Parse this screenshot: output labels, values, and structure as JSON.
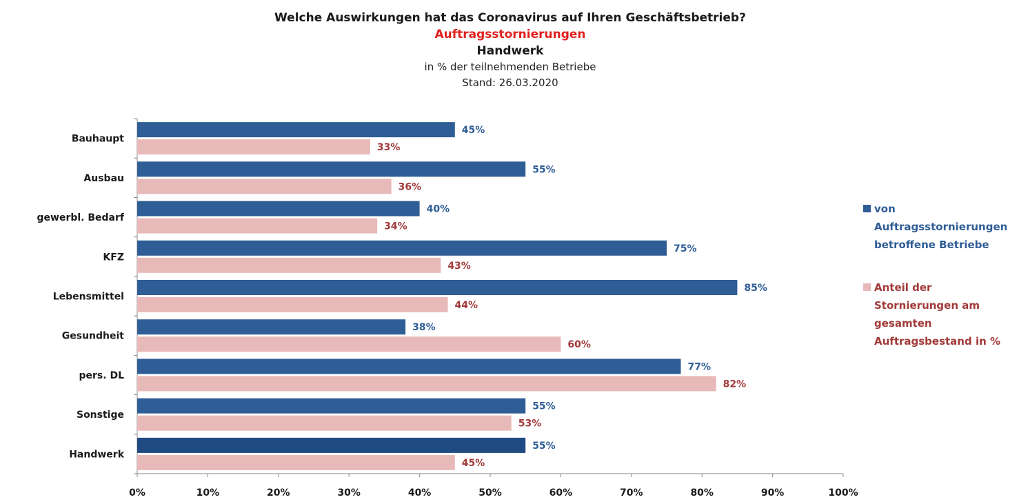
{
  "title": "Welche Auswirkungen hat das Coronavirus auf Ihren Geschäftsbetrieb?",
  "subtitle": "Auftragsstornierungen",
  "subtitle2": "Handwerk",
  "note": "in % der teilnehmenden Betriebe",
  "date": "Stand:  26.03.2020",
  "colors": {
    "series1": "#2f5d96",
    "series1_total": "#1f4a82",
    "series2": "#e8b9b9",
    "label1": "#2f5d96",
    "label2": "#a23a3a",
    "axis": "#888888"
  },
  "legend": {
    "series1_lines": [
      "von",
      "Auftragsstornierungen",
      "betroffene Betriebe"
    ],
    "series2_lines": [
      "Anteil der",
      "Stornierungen am",
      "gesamten",
      "Auftragsbestand in %"
    ]
  },
  "chart_data": {
    "type": "bar",
    "orientation": "horizontal",
    "categories": [
      "Bauhaupt",
      "Ausbau",
      "gewerbl. Bedarf",
      "KFZ",
      "Lebensmittel",
      "Gesundheit",
      "pers. DL",
      "Sonstige",
      "Handwerk"
    ],
    "series": [
      {
        "name": "von Auftragsstornierungen betroffene Betriebe",
        "values": [
          45,
          55,
          40,
          75,
          85,
          38,
          77,
          55,
          55
        ]
      },
      {
        "name": "Anteil der Stornierungen am gesamten Auftragsbestand in %",
        "values": [
          33,
          36,
          34,
          43,
          44,
          60,
          82,
          53,
          45
        ]
      }
    ],
    "data_labels": [
      [
        "45%",
        "55%",
        "40%",
        "75%",
        "85%",
        "38%",
        "77%",
        "55%",
        "55%"
      ],
      [
        "33%",
        "36%",
        "34%",
        "43%",
        "44%",
        "60%",
        "82%",
        "53%",
        "45%"
      ]
    ],
    "x_ticks": [
      "0%",
      "10%",
      "20%",
      "30%",
      "40%",
      "50%",
      "60%",
      "70%",
      "80%",
      "90%",
      "100%"
    ],
    "xlim": [
      0,
      100
    ],
    "grid": false,
    "legend_position": "right"
  }
}
